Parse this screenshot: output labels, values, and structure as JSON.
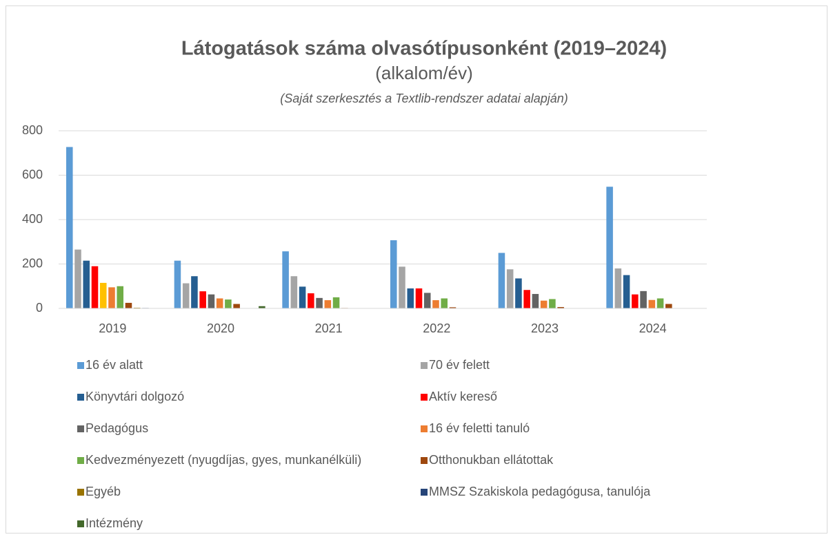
{
  "chart_data": {
    "type": "bar",
    "title": "Látogatások száma olvasótípusonként (2019–2024)",
    "subtitle": "(alkalom/év)",
    "note": "(Saját szerkesztés a Textlib-rendszer adatai alapján)",
    "categories": [
      "2019",
      "2020",
      "2021",
      "2022",
      "2023",
      "2024"
    ],
    "ylim": [
      0,
      800
    ],
    "yticks": [
      0,
      200,
      400,
      600,
      800
    ],
    "grid": true,
    "series": [
      {
        "name": "16 év alatt",
        "color": "#5b9bd5",
        "values": [
          727,
          215,
          257,
          307,
          250,
          548
        ]
      },
      {
        "name": "70 év felett",
        "color": "#a5a5a5",
        "values": [
          265,
          113,
          145,
          188,
          176,
          180
        ]
      },
      {
        "name": "Könyvtári dolgozó",
        "color": "#255e91",
        "values": [
          215,
          145,
          98,
          90,
          135,
          150
        ]
      },
      {
        "name": "Aktív kereső",
        "color": "#ff0000",
        "values": [
          190,
          77,
          68,
          90,
          83,
          63
        ]
      },
      {
        "name": "Pedagógus",
        "color": "#636363",
        "colors": [
          "#ffc000",
          "#636363",
          "#636363",
          "#636363",
          "#636363",
          "#636363"
        ],
        "values": [
          115,
          63,
          47,
          70,
          65,
          78
        ]
      },
      {
        "name": "16 év feletti tanuló",
        "color": "#ed7d31",
        "values": [
          95,
          45,
          37,
          37,
          35,
          38
        ]
      },
      {
        "name": "Kedvezményezett (nyugdíjas, gyes, munkanélküli)",
        "color": "#70ad47",
        "values": [
          100,
          40,
          50,
          45,
          42,
          45
        ]
      },
      {
        "name": "Otthonukban ellátottak",
        "color": "#9e480e",
        "values": [
          25,
          20,
          2,
          5,
          6,
          20
        ]
      },
      {
        "name": "Egyéb",
        "color": "#997300",
        "values": [
          3,
          1,
          0,
          0,
          0,
          0
        ]
      },
      {
        "name": "MMSZ Szakiskola pedagógusa, tanulója",
        "color": "#264478",
        "values": [
          2,
          1,
          0,
          0,
          0,
          0
        ]
      },
      {
        "name": "Intézmény",
        "color": "#43682b",
        "values": [
          0,
          10,
          0,
          0,
          0,
          0
        ]
      }
    ]
  }
}
